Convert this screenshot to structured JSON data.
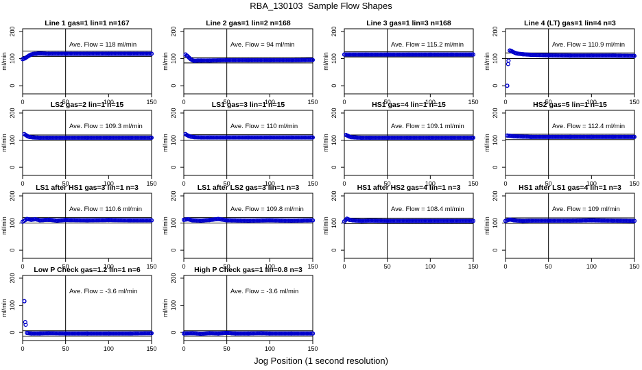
{
  "figure": {
    "title": "RBA_130103  Sample Flow Shapes",
    "xlabel": "Jog Position (1 second resolution)"
  },
  "colors": {
    "points": "#0000cc",
    "lines": "#000000"
  },
  "chart_data": [
    {
      "type": "scatter",
      "title": "Line 1 gas=1 lin=1 n=167",
      "annotation": "Ave. Flow =  118  ml/min",
      "ylabel": "ml/min",
      "xlim": [
        0,
        150
      ],
      "ylim": [
        -30,
        210
      ],
      "xticks": [
        0,
        50,
        100,
        150
      ],
      "yticks": [
        0,
        100,
        200
      ],
      "vline": 50,
      "hlines": [
        108,
        128
      ],
      "series": [
        {
          "x": [
            0,
            2,
            4,
            6,
            8,
            10,
            12,
            14,
            16,
            18,
            20,
            30,
            50,
            75,
            100,
            125,
            150
          ],
          "y": [
            98,
            100,
            104,
            108,
            112,
            115,
            117,
            118,
            118,
            119,
            119,
            118,
            118,
            118,
            118,
            118,
            118
          ]
        }
      ]
    },
    {
      "type": "scatter",
      "title": "Line 2 gas=1 lin=2 n=168",
      "annotation": "Ave. Flow =  94  ml/min",
      "ylabel": "ml/min",
      "xlim": [
        0,
        150
      ],
      "ylim": [
        -30,
        210
      ],
      "xticks": [
        0,
        50,
        100,
        150
      ],
      "yticks": [
        0,
        100,
        200
      ],
      "vline": 50,
      "hlines": [
        84,
        104
      ],
      "series": [
        {
          "x": [
            2,
            4,
            6,
            8,
            10,
            12,
            14,
            16,
            20,
            30,
            50,
            75,
            100,
            125,
            150
          ],
          "y": [
            115,
            110,
            104,
            98,
            94,
            92,
            92,
            93,
            93,
            93,
            94,
            94,
            94,
            94,
            95
          ]
        }
      ]
    },
    {
      "type": "scatter",
      "title": "Line 3 gas=1 lin=3 n=168",
      "annotation": "Ave. Flow =  115.2  ml/min",
      "ylabel": "ml/min",
      "xlim": [
        0,
        150
      ],
      "ylim": [
        -30,
        210
      ],
      "xticks": [
        0,
        50,
        100,
        150
      ],
      "yticks": [
        0,
        100,
        200
      ],
      "vline": 50,
      "hlines": [
        106,
        125
      ],
      "series": [
        {
          "x": [
            0,
            25,
            50,
            75,
            100,
            125,
            150
          ],
          "y": [
            115,
            115,
            115,
            115,
            115,
            115,
            115
          ]
        }
      ]
    },
    {
      "type": "scatter",
      "title": "Line 4 (LT) gas=1 lin=4 n=3",
      "annotation": "Ave. Flow =  110.9  ml/min",
      "ylabel": "ml/min",
      "xlim": [
        0,
        150
      ],
      "ylim": [
        -30,
        210
      ],
      "xticks": [
        0,
        50,
        100,
        150
      ],
      "yticks": [
        0,
        100,
        200
      ],
      "vline": 50,
      "hlines": [
        100,
        121
      ],
      "series": [
        {
          "x": [
            2,
            3,
            5,
            7,
            9,
            12,
            15,
            20,
            30,
            50,
            75,
            100,
            125,
            150
          ],
          "y": [
            0,
            80,
            130,
            128,
            124,
            120,
            118,
            116,
            114,
            112,
            111,
            111,
            111,
            110
          ]
        }
      ]
    },
    {
      "type": "scatter",
      "title": "LS2 gas=2 lin=1 n=15",
      "annotation": "Ave. Flow =  109.3  ml/min",
      "ylabel": "ml/min",
      "xlim": [
        0,
        150
      ],
      "ylim": [
        -30,
        210
      ],
      "xticks": [
        0,
        50,
        100,
        150
      ],
      "yticks": [
        0,
        100,
        200
      ],
      "vline": 50,
      "hlines": [
        99,
        119
      ],
      "series": [
        {
          "x": [
            2,
            4,
            6,
            8,
            12,
            20,
            30,
            50,
            75,
            100,
            125,
            150
          ],
          "y": [
            122,
            118,
            114,
            112,
            110,
            109,
            109,
            109,
            109,
            109,
            109,
            109
          ]
        }
      ]
    },
    {
      "type": "scatter",
      "title": "LS1 gas=3 lin=1 n=15",
      "annotation": "Ave. Flow =  110  ml/min",
      "ylabel": "ml/min",
      "xlim": [
        0,
        150
      ],
      "ylim": [
        -30,
        210
      ],
      "xticks": [
        0,
        50,
        100,
        150
      ],
      "yticks": [
        0,
        100,
        200
      ],
      "vline": 50,
      "hlines": [
        100,
        120
      ],
      "series": [
        {
          "x": [
            2,
            4,
            6,
            8,
            12,
            20,
            30,
            50,
            75,
            100,
            125,
            150
          ],
          "y": [
            122,
            118,
            115,
            113,
            111,
            110,
            110,
            110,
            110,
            110,
            110,
            110
          ]
        }
      ]
    },
    {
      "type": "scatter",
      "title": "HS1 gas=4 lin=1 n=15",
      "annotation": "Ave. Flow =  109.1  ml/min",
      "ylabel": "ml/min",
      "xlim": [
        0,
        150
      ],
      "ylim": [
        -30,
        210
      ],
      "xticks": [
        0,
        50,
        100,
        150
      ],
      "yticks": [
        0,
        100,
        200
      ],
      "vline": 50,
      "hlines": [
        99,
        119
      ],
      "series": [
        {
          "x": [
            2,
            4,
            6,
            8,
            12,
            20,
            30,
            50,
            75,
            100,
            125,
            150
          ],
          "y": [
            119,
            116,
            113,
            111,
            110,
            109,
            109,
            109,
            109,
            109,
            109,
            109
          ]
        }
      ]
    },
    {
      "type": "scatter",
      "title": "HS2 gas=5 lin=1 n=15",
      "annotation": "Ave. Flow =  112.4  ml/min",
      "ylabel": "ml/min",
      "xlim": [
        0,
        150
      ],
      "ylim": [
        -30,
        210
      ],
      "xticks": [
        0,
        50,
        100,
        150
      ],
      "yticks": [
        0,
        100,
        200
      ],
      "vline": 50,
      "hlines": [
        102,
        122
      ],
      "series": [
        {
          "x": [
            2,
            5,
            10,
            20,
            30,
            50,
            75,
            100,
            125,
            150
          ],
          "y": [
            117,
            116,
            114,
            113,
            112,
            112,
            112,
            112,
            112,
            112
          ]
        }
      ]
    },
    {
      "type": "scatter",
      "title": "LS1 after HS1 gas=3 lin=1 n=3",
      "annotation": "Ave. Flow =  110.6  ml/min",
      "ylabel": "ml/min",
      "xlim": [
        0,
        150
      ],
      "ylim": [
        -30,
        210
      ],
      "xticks": [
        0,
        50,
        100,
        150
      ],
      "yticks": [
        0,
        100,
        200
      ],
      "vline": 50,
      "hlines": [
        100,
        120
      ],
      "series": [
        {
          "x": [
            0,
            5,
            10,
            15,
            20,
            30,
            40,
            50,
            75,
            100,
            125,
            150
          ],
          "y": [
            105,
            115,
            112,
            114,
            110,
            112,
            109,
            111,
            110,
            111,
            110,
            110
          ]
        }
      ]
    },
    {
      "type": "scatter",
      "title": "LS1 after LS2 gas=3 lin=1 n=3",
      "annotation": "Ave. Flow =  109.8  ml/min",
      "ylabel": "ml/min",
      "xlim": [
        0,
        150
      ],
      "ylim": [
        -30,
        210
      ],
      "xticks": [
        0,
        50,
        100,
        150
      ],
      "yticks": [
        0,
        100,
        200
      ],
      "vline": 50,
      "hlines": [
        100,
        120
      ],
      "series": [
        {
          "x": [
            0,
            5,
            10,
            20,
            30,
            40,
            50,
            75,
            100,
            125,
            150
          ],
          "y": [
            112,
            114,
            110,
            109,
            111,
            115,
            110,
            109,
            110,
            109,
            110
          ]
        }
      ]
    },
    {
      "type": "scatter",
      "title": "HS1 after HS2 gas=4 lin=1 n=3",
      "annotation": "Ave. Flow =  108.4  ml/min",
      "ylabel": "ml/min",
      "xlim": [
        0,
        150
      ],
      "ylim": [
        -30,
        210
      ],
      "xticks": [
        0,
        50,
        100,
        150
      ],
      "yticks": [
        0,
        100,
        200
      ],
      "vline": 50,
      "hlines": [
        98,
        118
      ],
      "series": [
        {
          "x": [
            0,
            3,
            6,
            10,
            20,
            30,
            50,
            75,
            100,
            125,
            150
          ],
          "y": [
            106,
            116,
            112,
            110,
            108,
            109,
            108,
            108,
            108,
            108,
            108
          ]
        }
      ]
    },
    {
      "type": "scatter",
      "title": "HS1 after LS1 gas=4 lin=1 n=3",
      "annotation": "Ave. Flow =  109  ml/min",
      "ylabel": "ml/min",
      "xlim": [
        0,
        150
      ],
      "ylim": [
        -30,
        210
      ],
      "xticks": [
        0,
        50,
        100,
        150
      ],
      "yticks": [
        0,
        100,
        200
      ],
      "vline": 50,
      "hlines": [
        99,
        119
      ],
      "series": [
        {
          "x": [
            0,
            5,
            10,
            20,
            30,
            50,
            75,
            100,
            125,
            150
          ],
          "y": [
            108,
            113,
            110,
            108,
            109,
            109,
            109,
            110,
            109,
            108
          ]
        }
      ]
    },
    {
      "type": "scatter",
      "title": "Low P Check gas=1.2 lin=1 n=6",
      "annotation": "Ave. Flow =  -3.6  ml/min",
      "ylabel": "ml/min",
      "xlim": [
        0,
        150
      ],
      "ylim": [
        -30,
        210
      ],
      "xticks": [
        0,
        50,
        100,
        150
      ],
      "yticks": [
        0,
        100,
        200
      ],
      "vline": 50,
      "hlines": [
        -14,
        6
      ],
      "series": [
        {
          "x": [
            2,
            3,
            5,
            10,
            20,
            30,
            50,
            75,
            100,
            125,
            150
          ],
          "y": [
            115,
            38,
            -2,
            -4,
            -4,
            -3,
            -4,
            -4,
            -4,
            -4,
            -3
          ]
        }
      ]
    },
    {
      "type": "scatter",
      "title": "High P Check gas=1 lin=0.8 n=3",
      "annotation": "Ave. Flow =  -3.6  ml/min",
      "ylabel": "ml/min",
      "xlim": [
        0,
        150
      ],
      "ylim": [
        -30,
        210
      ],
      "xticks": [
        0,
        50,
        100,
        150
      ],
      "yticks": [
        0,
        100,
        200
      ],
      "vline": 50,
      "hlines": [
        -14,
        6
      ],
      "series": [
        {
          "x": [
            0,
            10,
            20,
            30,
            40,
            50,
            60,
            75,
            90,
            100,
            125,
            150
          ],
          "y": [
            -4,
            -3,
            -5,
            -3,
            -4,
            -2,
            -4,
            -4,
            -3,
            -4,
            -4,
            -4
          ]
        }
      ]
    }
  ]
}
